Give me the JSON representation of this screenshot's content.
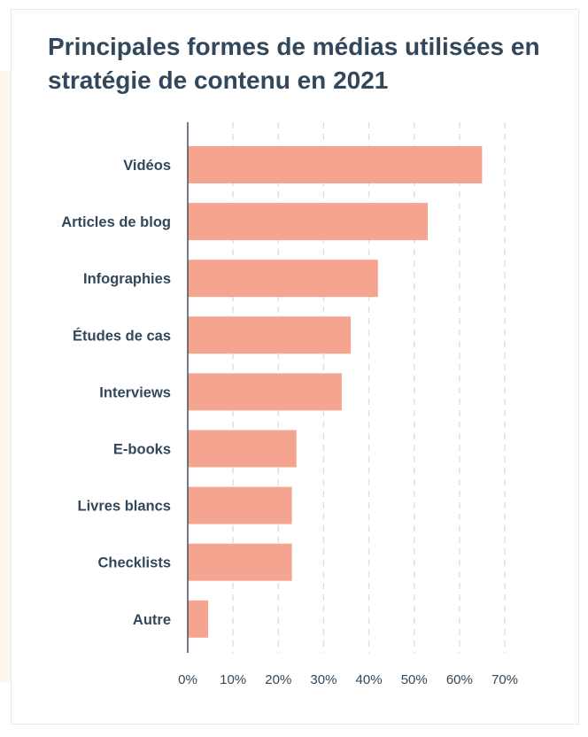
{
  "chart_data": {
    "type": "bar",
    "orientation": "horizontal",
    "title": "Principales formes de médias utilisées en stratégie de contenu en 2021",
    "categories": [
      "Vidéos",
      "Articles de blog",
      "Infographies",
      "Études de cas",
      "Interviews",
      "E-books",
      "Livres blancs",
      "Checklists",
      "Autre"
    ],
    "values": [
      65,
      53,
      42,
      36,
      34,
      24,
      23,
      23,
      4.5
    ],
    "xlim": [
      0,
      70
    ],
    "x_ticks": [
      "0%",
      "10%",
      "20%",
      "30%",
      "40%",
      "50%",
      "60%",
      "70%"
    ],
    "xlabel": "",
    "ylabel": "",
    "grid": "vertical dashed",
    "legend": "none",
    "colors": {
      "bar": "#f5a58f",
      "text": "#33475b",
      "axis": "#33475b",
      "grid": "#d7dde3"
    }
  }
}
